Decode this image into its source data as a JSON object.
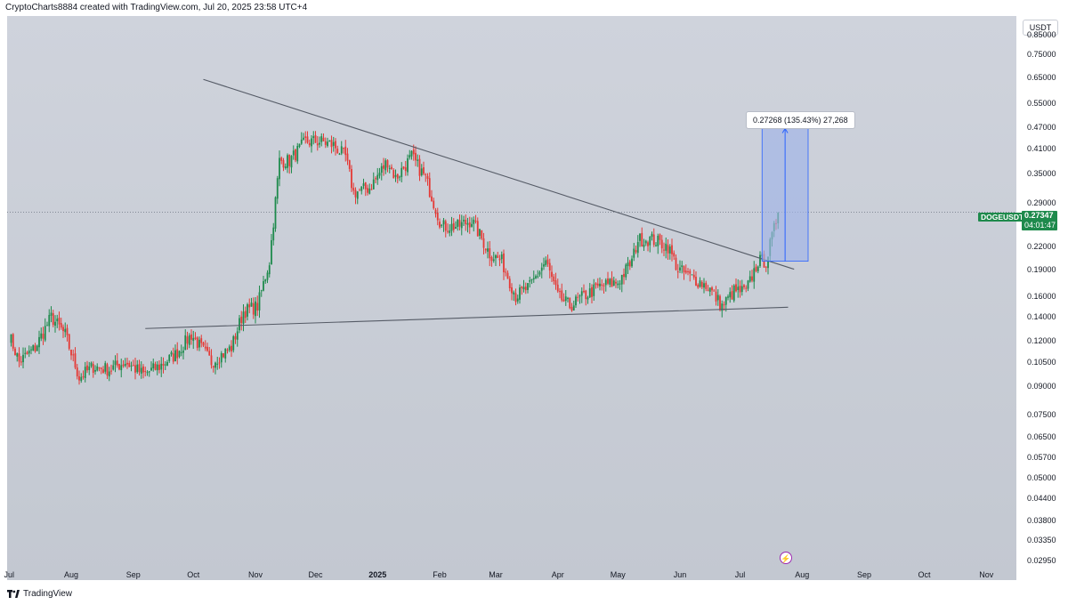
{
  "header": {
    "credit": "CryptoCharts8884 created with TradingView.com, Jul 20, 2025 23:58 UTC+4"
  },
  "footer": {
    "brand": "TradingView"
  },
  "price_axis": {
    "currency": "USDT"
  },
  "symbol": {
    "name": "DOGEUSDT",
    "price": "0.27347",
    "countdown": "04:01:47"
  },
  "measure": {
    "label": "0.27268 (135.43%) 27,268"
  },
  "colors": {
    "up": "#1e8a4c",
    "down": "#e53935",
    "trendline": "#555b66",
    "measure_fill": "#9fb4e8",
    "measure_line": "#2962ff"
  },
  "icons": {
    "lightning": "lightning-icon",
    "logo": "tradingview-logo-icon"
  },
  "chart_data": {
    "type": "candlestick",
    "title": "",
    "yscale": "log",
    "ylim": [
      0.026,
      0.96
    ],
    "y_ticks": [
      "0.85000",
      "0.75000",
      "0.65000",
      "0.55000",
      "0.47000",
      "0.41000",
      "0.35000",
      "0.29000",
      "0.22000",
      "0.19000",
      "0.16000",
      "0.14000",
      "0.12000",
      "0.10500",
      "0.09000",
      "0.07500",
      "0.06500",
      "0.05700",
      "0.05000",
      "0.04400",
      "0.03800",
      "0.03350",
      "0.02950"
    ],
    "y_tick_values": [
      0.85,
      0.75,
      0.65,
      0.55,
      0.47,
      0.41,
      0.35,
      0.29,
      0.22,
      0.19,
      0.16,
      0.14,
      0.12,
      0.105,
      0.09,
      0.075,
      0.065,
      0.057,
      0.05,
      0.044,
      0.038,
      0.0335,
      0.0295
    ],
    "x_ticks": [
      {
        "label": "Jul",
        "date": "2024-07-01",
        "bold": false
      },
      {
        "label": "Aug",
        "date": "2024-08-01",
        "bold": false
      },
      {
        "label": "Sep",
        "date": "2024-09-01",
        "bold": false
      },
      {
        "label": "Oct",
        "date": "2024-10-01",
        "bold": false
      },
      {
        "label": "Nov",
        "date": "2024-11-01",
        "bold": false
      },
      {
        "label": "Dec",
        "date": "2024-12-01",
        "bold": false
      },
      {
        "label": "2025",
        "date": "2025-01-01",
        "bold": true
      },
      {
        "label": "Feb",
        "date": "2025-02-01",
        "bold": false
      },
      {
        "label": "Mar",
        "date": "2025-03-01",
        "bold": false
      },
      {
        "label": "Apr",
        "date": "2025-04-01",
        "bold": false
      },
      {
        "label": "May",
        "date": "2025-05-01",
        "bold": false
      },
      {
        "label": "Jun",
        "date": "2025-06-01",
        "bold": false
      },
      {
        "label": "Jul",
        "date": "2025-07-01",
        "bold": false
      },
      {
        "label": "Aug",
        "date": "2025-08-01",
        "bold": false
      },
      {
        "label": "Sep",
        "date": "2025-09-01",
        "bold": false
      },
      {
        "label": "Oct",
        "date": "2025-10-01",
        "bold": false
      },
      {
        "label": "Nov",
        "date": "2025-11-01",
        "bold": false
      }
    ],
    "x_range": [
      "2024-06-30",
      "2025-11-16"
    ],
    "price_keypoints": [
      [
        "2024-07-01",
        0.125
      ],
      [
        "2024-07-06",
        0.105
      ],
      [
        "2024-07-14",
        0.115
      ],
      [
        "2024-07-22",
        0.14
      ],
      [
        "2024-07-29",
        0.125
      ],
      [
        "2024-08-05",
        0.095
      ],
      [
        "2024-08-12",
        0.102
      ],
      [
        "2024-08-20",
        0.1
      ],
      [
        "2024-08-28",
        0.105
      ],
      [
        "2024-09-06",
        0.097
      ],
      [
        "2024-09-14",
        0.102
      ],
      [
        "2024-09-22",
        0.11
      ],
      [
        "2024-09-30",
        0.125
      ],
      [
        "2024-10-10",
        0.105
      ],
      [
        "2024-10-20",
        0.115
      ],
      [
        "2024-10-26",
        0.145
      ],
      [
        "2024-11-02",
        0.15
      ],
      [
        "2024-11-08",
        0.2
      ],
      [
        "2024-11-13",
        0.38
      ],
      [
        "2024-11-18",
        0.38
      ],
      [
        "2024-11-26",
        0.43
      ],
      [
        "2024-12-04",
        0.43
      ],
      [
        "2024-12-10",
        0.42
      ],
      [
        "2024-12-16",
        0.39
      ],
      [
        "2024-12-20",
        0.31
      ],
      [
        "2024-12-28",
        0.32
      ],
      [
        "2025-01-06",
        0.38
      ],
      [
        "2025-01-10",
        0.34
      ],
      [
        "2025-01-18",
        0.39
      ],
      [
        "2025-01-25",
        0.34
      ],
      [
        "2025-02-02",
        0.25
      ],
      [
        "2025-02-10",
        0.25
      ],
      [
        "2025-02-17",
        0.26
      ],
      [
        "2025-02-26",
        0.21
      ],
      [
        "2025-03-04",
        0.2
      ],
      [
        "2025-03-11",
        0.16
      ],
      [
        "2025-03-18",
        0.17
      ],
      [
        "2025-03-26",
        0.2
      ],
      [
        "2025-04-01",
        0.16
      ],
      [
        "2025-04-07",
        0.15
      ],
      [
        "2025-04-14",
        0.16
      ],
      [
        "2025-04-22",
        0.17
      ],
      [
        "2025-05-01",
        0.175
      ],
      [
        "2025-05-08",
        0.2
      ],
      [
        "2025-05-11",
        0.23
      ],
      [
        "2025-05-18",
        0.23
      ],
      [
        "2025-05-26",
        0.22
      ],
      [
        "2025-05-31",
        0.19
      ],
      [
        "2025-06-07",
        0.18
      ],
      [
        "2025-06-15",
        0.17
      ],
      [
        "2025-06-22",
        0.15
      ],
      [
        "2025-06-28",
        0.165
      ],
      [
        "2025-07-04",
        0.165
      ],
      [
        "2025-07-10",
        0.2
      ],
      [
        "2025-07-14",
        0.2
      ],
      [
        "2025-07-18",
        0.245
      ],
      [
        "2025-07-20",
        0.273
      ]
    ],
    "trendlines": [
      {
        "name": "descending resistance",
        "from": [
          "2024-10-06",
          0.64
        ],
        "to": [
          "2025-07-28",
          0.19
        ]
      },
      {
        "name": "ascending support",
        "from": [
          "2024-09-07",
          0.13
        ],
        "to": [
          "2025-07-25",
          0.149
        ]
      }
    ],
    "current_price": 0.27347,
    "measure": {
      "from_date": "2025-07-12",
      "to_date": "2025-08-04",
      "low": 0.2,
      "high": 0.47,
      "change": "0.27268",
      "change_pct": "135.43%",
      "ticks": "27,268"
    }
  }
}
